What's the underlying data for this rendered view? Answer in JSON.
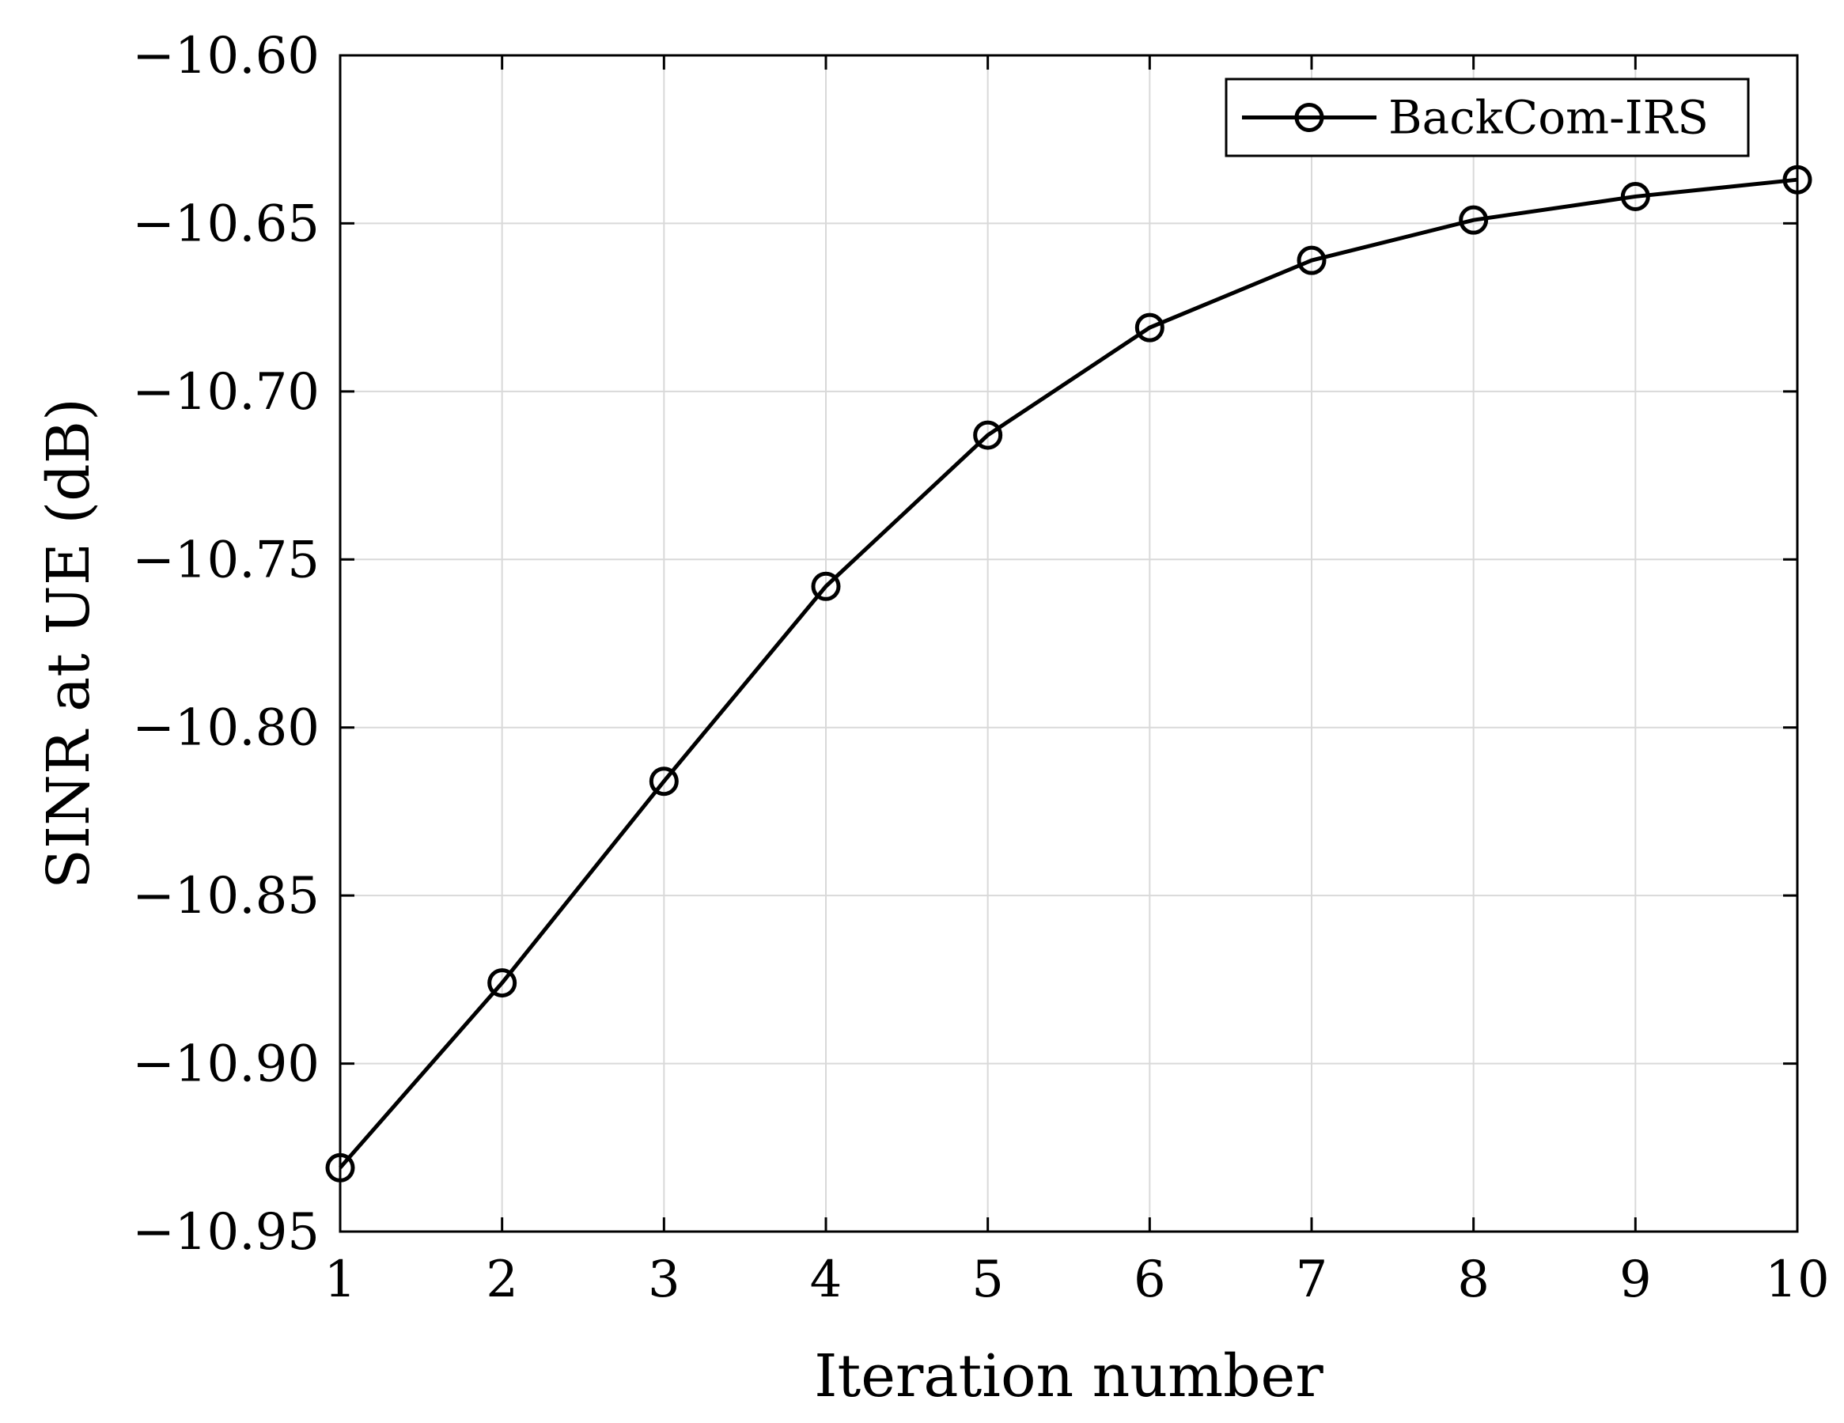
{
  "chart_data": {
    "type": "line",
    "title": "",
    "xlabel": "Iteration number",
    "ylabel": "SINR at UE (dB)",
    "xlim": [
      1,
      10
    ],
    "ylim": [
      -10.95,
      -10.6
    ],
    "x_ticks": [
      1,
      2,
      3,
      4,
      5,
      6,
      7,
      8,
      9,
      10
    ],
    "x_tick_labels": [
      "1",
      "2",
      "3",
      "4",
      "5",
      "6",
      "7",
      "8",
      "9",
      "10"
    ],
    "y_ticks": [
      -10.6,
      -10.65,
      -10.7,
      -10.75,
      -10.8,
      -10.85,
      -10.9,
      -10.95
    ],
    "y_tick_labels": [
      "−10.60",
      "−10.65",
      "−10.70",
      "−10.75",
      "−10.80",
      "−10.85",
      "−10.90",
      "−10.95"
    ],
    "grid": true,
    "legend_position": "top-right",
    "series": [
      {
        "name": "BackCom-IRS",
        "color": "#000000",
        "marker": "circle",
        "x": [
          1,
          2,
          3,
          4,
          5,
          6,
          7,
          8,
          9,
          10
        ],
        "y": [
          -10.931,
          -10.876,
          -10.816,
          -10.758,
          -10.713,
          -10.681,
          -10.661,
          -10.649,
          -10.642,
          -10.637
        ]
      }
    ]
  }
}
